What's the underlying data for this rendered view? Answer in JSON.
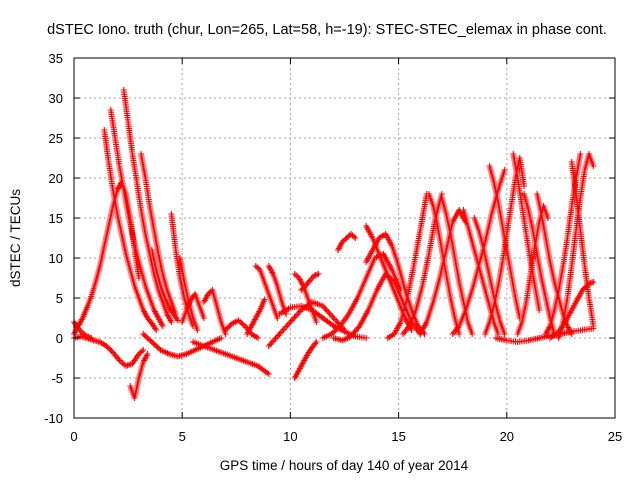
{
  "chart_data": {
    "type": "scatter",
    "title": "dSTEC Iono. truth (chur, Lon=265, Lat=58, h=-19): STEC-STEC_elemax in phase cont.",
    "xlabel": "GPS time / hours of day 140 of year 2014",
    "ylabel": "dSTEC  / TECUs",
    "xlim": [
      0,
      25
    ],
    "ylim": [
      -10,
      35
    ],
    "x_ticks": [
      0,
      5,
      10,
      15,
      20,
      25
    ],
    "y_ticks": [
      -10,
      -5,
      0,
      5,
      10,
      15,
      20,
      25,
      30,
      35
    ],
    "x_tick_labels": [
      "0",
      "5",
      "10",
      "15",
      "20",
      "25"
    ],
    "y_tick_labels": [
      "-10",
      "-5",
      "0",
      "5",
      "10",
      "15",
      "20",
      "25",
      "30",
      "35"
    ],
    "grid": true,
    "legend": "none",
    "marker": "plus",
    "color": "#ff0000",
    "arcs": [
      {
        "x": [
          0.0,
          0.2,
          0.4,
          0.6,
          0.8,
          1.0,
          1.2,
          1.4,
          1.6,
          1.8,
          2.0,
          2.2,
          2.4,
          2.6,
          2.8,
          3.0
        ],
        "y": [
          0.5,
          1.5,
          2.5,
          3.8,
          5.2,
          7.0,
          9.0,
          11.5,
          14.0,
          16.5,
          18.5,
          19.5,
          18.0,
          15.0,
          11.0,
          7.5
        ]
      },
      {
        "x": [
          0.0,
          0.3,
          0.6,
          0.9,
          1.2,
          1.5,
          1.8,
          2.1,
          2.4,
          2.7,
          3.0,
          3.2
        ],
        "y": [
          0.0,
          0.2,
          0.0,
          -0.3,
          -0.5,
          -1.0,
          -1.8,
          -2.8,
          -3.5,
          -3.2,
          -2.0,
          -1.5
        ]
      },
      {
        "x": [
          0.0,
          0.2,
          0.4,
          0.6,
          0.8
        ],
        "y": [
          2.0,
          1.2,
          0.6,
          0.2,
          0.0
        ]
      },
      {
        "x": [
          1.4,
          1.6,
          1.8,
          2.0,
          2.2,
          2.4,
          2.6,
          2.8,
          3.0,
          3.2,
          3.4,
          3.6,
          3.8
        ],
        "y": [
          26.0,
          22.0,
          18.5,
          15.5,
          13.0,
          10.5,
          8.5,
          6.5,
          5.0,
          3.5,
          2.5,
          1.8,
          1.0
        ]
      },
      {
        "x": [
          1.7,
          1.9,
          2.1,
          2.3,
          2.5,
          2.7,
          2.9,
          3.1,
          3.3,
          3.5,
          3.7,
          3.9,
          4.1
        ],
        "y": [
          28.5,
          25.0,
          21.5,
          18.5,
          15.5,
          13.0,
          10.5,
          8.5,
          6.5,
          5.0,
          3.5,
          2.5,
          1.5
        ]
      },
      {
        "x": [
          2.3,
          2.5,
          2.7,
          2.9,
          3.1,
          3.3,
          3.5,
          3.7,
          3.9,
          4.1,
          4.3,
          4.5
        ],
        "y": [
          31.0,
          27.0,
          23.0,
          19.5,
          16.0,
          13.0,
          10.5,
          8.0,
          6.0,
          4.5,
          3.0,
          2.0
        ]
      },
      {
        "x": [
          3.1,
          3.3,
          3.5,
          3.7,
          3.9,
          4.1,
          4.3,
          4.5,
          4.7
        ],
        "y": [
          23.0,
          20.0,
          16.5,
          13.5,
          10.5,
          8.0,
          6.0,
          4.5,
          3.0
        ]
      },
      {
        "x": [
          2.6,
          2.8,
          3.0,
          3.2,
          3.4
        ],
        "y": [
          -6.0,
          -7.5,
          -5.0,
          -3.0,
          -2.0
        ]
      },
      {
        "x": [
          3.6,
          3.8,
          4.0,
          4.2,
          4.4,
          4.6,
          4.8
        ],
        "y": [
          11.0,
          8.5,
          6.5,
          5.0,
          3.8,
          3.0,
          2.2
        ]
      },
      {
        "x": [
          4.5,
          4.7,
          4.9,
          5.1,
          5.3,
          5.5
        ],
        "y": [
          15.5,
          11.0,
          7.5,
          5.0,
          3.0,
          1.5
        ]
      },
      {
        "x": [
          4.9,
          5.1,
          5.3,
          5.5,
          5.7
        ],
        "y": [
          10.0,
          7.0,
          4.5,
          2.5,
          1.0
        ]
      },
      {
        "x": [
          3.2,
          3.6,
          4.0,
          4.4,
          4.8,
          5.2,
          5.6,
          6.0,
          6.4,
          6.8
        ],
        "y": [
          0.5,
          -0.5,
          -1.5,
          -2.0,
          -2.3,
          -2.0,
          -1.5,
          -1.0,
          -0.5,
          0.0
        ]
      },
      {
        "x": [
          5.0,
          5.2,
          5.4,
          5.6,
          5.8,
          6.0
        ],
        "y": [
          2.0,
          3.5,
          4.8,
          5.5,
          4.0,
          2.5
        ]
      },
      {
        "x": [
          6.0,
          6.2,
          6.4,
          6.6,
          6.8,
          7.0
        ],
        "y": [
          4.5,
          5.5,
          6.0,
          4.0,
          2.0,
          0.5
        ]
      },
      {
        "x": [
          5.5,
          6.0,
          6.5,
          7.0,
          7.5,
          8.0,
          8.5,
          9.0
        ],
        "y": [
          -0.5,
          -1.0,
          -1.5,
          -2.0,
          -2.5,
          -3.0,
          -3.5,
          -4.5
        ]
      },
      {
        "x": [
          7.0,
          7.3,
          7.6,
          7.9,
          8.2,
          8.5
        ],
        "y": [
          1.0,
          1.8,
          2.2,
          1.5,
          0.5,
          0.0
        ]
      },
      {
        "x": [
          8.0,
          8.2,
          8.4,
          8.6,
          8.8
        ],
        "y": [
          0.5,
          1.5,
          2.5,
          3.5,
          4.8
        ]
      },
      {
        "x": [
          8.4,
          8.6,
          8.8,
          9.0,
          9.2,
          9.4
        ],
        "y": [
          9.0,
          8.5,
          7.0,
          5.5,
          4.0,
          2.5
        ]
      },
      {
        "x": [
          9.0,
          9.2,
          9.4,
          9.6,
          9.8
        ],
        "y": [
          9.0,
          8.0,
          6.5,
          4.5,
          3.0
        ]
      },
      {
        "x": [
          9.0,
          9.5,
          10.0,
          10.5,
          11.0,
          11.5,
          12.0,
          12.5
        ],
        "y": [
          -1.0,
          0.5,
          2.0,
          3.5,
          4.5,
          4.0,
          2.5,
          1.0
        ]
      },
      {
        "x": [
          9.5,
          10.0,
          10.5,
          11.0,
          11.5,
          12.0,
          12.5,
          13.0,
          13.5
        ],
        "y": [
          3.0,
          3.8,
          4.0,
          3.5,
          2.5,
          1.5,
          0.8,
          0.2,
          0.0
        ]
      },
      {
        "x": [
          10.2,
          10.4,
          10.6,
          10.8,
          11.0,
          11.2
        ],
        "y": [
          -5.0,
          -4.0,
          -3.0,
          -2.0,
          -1.2,
          -0.5
        ]
      },
      {
        "x": [
          10.2,
          10.4,
          10.6,
          10.8,
          11.0,
          11.2
        ],
        "y": [
          8.0,
          7.5,
          6.5,
          5.0,
          3.5,
          2.0
        ]
      },
      {
        "x": [
          10.5,
          10.7,
          10.9,
          11.1,
          11.3
        ],
        "y": [
          6.0,
          6.5,
          7.2,
          7.8,
          8.0
        ]
      },
      {
        "x": [
          11.5,
          11.9,
          12.3,
          12.7,
          13.1,
          13.5,
          13.9,
          14.3,
          14.7,
          15.1
        ],
        "y": [
          0.0,
          0.5,
          1.5,
          3.0,
          5.0,
          7.5,
          10.0,
          10.5,
          8.5,
          6.0
        ]
      },
      {
        "x": [
          12.0,
          12.4,
          12.8,
          13.2,
          13.6,
          14.0,
          14.4,
          14.8,
          15.2,
          15.6,
          16.0
        ],
        "y": [
          0.0,
          -0.3,
          0.2,
          1.5,
          3.5,
          6.0,
          8.0,
          7.0,
          4.5,
          2.0,
          0.5
        ]
      },
      {
        "x": [
          12.2,
          12.4,
          12.6,
          12.8,
          13.0
        ],
        "y": [
          11.0,
          12.0,
          12.5,
          13.0,
          12.5
        ]
      },
      {
        "x": [
          13.5,
          13.8,
          14.1,
          14.4,
          14.7,
          15.0,
          15.3,
          15.6,
          15.9,
          16.2
        ],
        "y": [
          9.5,
          11.0,
          12.5,
          13.0,
          11.5,
          9.0,
          6.0,
          3.5,
          1.5,
          0.5
        ]
      },
      {
        "x": [
          13.5,
          13.8,
          14.1,
          14.4,
          14.7,
          15.0,
          15.3,
          15.6
        ],
        "y": [
          14.0,
          12.5,
          10.5,
          8.5,
          6.5,
          4.5,
          2.5,
          1.0
        ]
      },
      {
        "x": [
          14.5,
          14.8,
          15.1,
          15.4,
          15.7,
          16.0,
          16.3
        ],
        "y": [
          0.0,
          0.5,
          2.0,
          5.0,
          9.0,
          13.5,
          18.0
        ]
      },
      {
        "x": [
          15.2,
          15.5,
          15.8,
          16.1,
          16.4,
          16.7,
          17.0
        ],
        "y": [
          0.5,
          1.5,
          3.5,
          6.5,
          10.5,
          15.0,
          18.0
        ]
      },
      {
        "x": [
          16.4,
          16.6,
          16.8,
          17.0,
          17.2,
          17.4,
          17.6,
          17.8
        ],
        "y": [
          18.0,
          16.5,
          14.0,
          11.0,
          8.0,
          5.0,
          2.5,
          0.5
        ]
      },
      {
        "x": [
          16.0,
          16.3,
          16.6,
          16.9,
          17.2,
          17.5,
          17.8,
          18.1
        ],
        "y": [
          0.5,
          2.0,
          4.5,
          7.5,
          11.0,
          14.5,
          16.0,
          14.5
        ]
      },
      {
        "x": [
          17.0,
          17.2,
          17.4,
          17.6,
          17.8,
          18.0,
          18.2,
          18.4
        ],
        "y": [
          17.5,
          15.5,
          13.0,
          10.0,
          7.0,
          4.5,
          2.0,
          0.5
        ]
      },
      {
        "x": [
          17.5,
          17.8,
          18.1,
          18.4,
          18.7,
          19.0,
          19.3,
          19.6,
          19.9
        ],
        "y": [
          0.5,
          1.5,
          3.5,
          6.0,
          9.0,
          12.0,
          15.5,
          18.5,
          21.0
        ]
      },
      {
        "x": [
          18.0,
          18.2,
          18.4,
          18.6,
          18.8,
          19.0,
          19.2,
          19.4,
          19.6
        ],
        "y": [
          16.0,
          14.0,
          12.0,
          10.0,
          8.0,
          6.0,
          4.0,
          2.0,
          0.5
        ]
      },
      {
        "x": [
          18.5,
          18.7,
          18.9,
          19.1,
          19.3,
          19.5,
          19.7,
          19.9
        ],
        "y": [
          15.0,
          13.5,
          11.5,
          9.0,
          6.5,
          4.0,
          2.0,
          0.5
        ]
      },
      {
        "x": [
          19.0,
          19.2,
          19.4,
          19.6,
          19.8,
          20.0,
          20.2,
          20.4,
          20.6,
          20.8
        ],
        "y": [
          0.5,
          2.0,
          4.0,
          6.5,
          9.5,
          13.0,
          16.5,
          20.0,
          22.5,
          19.0
        ]
      },
      {
        "x": [
          19.2,
          19.4,
          19.6,
          19.8,
          20.0,
          20.2,
          20.4,
          20.6
        ],
        "y": [
          21.5,
          19.5,
          17.0,
          14.0,
          11.0,
          8.0,
          5.0,
          2.5
        ]
      },
      {
        "x": [
          20.3,
          20.5,
          20.7,
          20.9,
          21.1,
          21.3,
          21.5
        ],
        "y": [
          23.0,
          20.0,
          16.5,
          13.0,
          9.5,
          6.5,
          3.5
        ]
      },
      {
        "x": [
          20.5,
          20.7,
          20.9,
          21.1,
          21.3,
          21.5,
          21.7,
          21.9
        ],
        "y": [
          0.5,
          2.0,
          4.5,
          8.0,
          11.5,
          14.5,
          16.5,
          15.0
        ]
      },
      {
        "x": [
          20.8,
          21.0,
          21.2,
          21.4,
          21.6,
          21.8,
          22.0,
          22.2
        ],
        "y": [
          18.0,
          16.0,
          13.5,
          10.5,
          7.5,
          5.0,
          2.5,
          0.5
        ]
      },
      {
        "x": [
          21.4,
          21.6,
          21.8,
          22.0,
          22.2,
          22.4,
          22.6,
          22.8,
          23.0
        ],
        "y": [
          18.0,
          15.5,
          12.5,
          9.5,
          7.0,
          5.0,
          3.0,
          1.5,
          0.5
        ]
      },
      {
        "x": [
          21.8,
          22.0,
          22.2,
          22.4,
          22.6,
          22.8,
          23.0,
          23.2,
          23.4
        ],
        "y": [
          0.5,
          1.5,
          3.5,
          6.0,
          9.0,
          12.5,
          16.5,
          20.0,
          23.0
        ]
      },
      {
        "x": [
          22.4,
          22.6,
          22.8,
          23.0,
          23.2,
          23.4,
          23.6,
          23.8,
          24.0
        ],
        "y": [
          0.0,
          2.0,
          5.0,
          9.0,
          13.5,
          17.5,
          21.0,
          23.0,
          21.5
        ]
      },
      {
        "x": [
          23.0,
          23.2,
          23.4,
          23.6,
          23.8,
          24.0
        ],
        "y": [
          22.0,
          18.0,
          13.5,
          9.0,
          5.0,
          1.5
        ]
      },
      {
        "x": [
          22.0,
          22.3,
          22.6,
          22.9,
          23.2,
          23.5,
          23.8,
          24.0
        ],
        "y": [
          0.0,
          0.5,
          1.5,
          3.0,
          4.5,
          6.0,
          6.8,
          7.0
        ]
      },
      {
        "x": [
          19.5,
          20.0,
          20.5,
          21.0,
          21.5,
          22.0,
          22.5,
          23.0,
          23.5,
          24.0
        ],
        "y": [
          0.0,
          -0.3,
          -0.5,
          -0.3,
          0.0,
          0.3,
          0.5,
          0.8,
          1.0,
          1.2
        ]
      }
    ]
  }
}
